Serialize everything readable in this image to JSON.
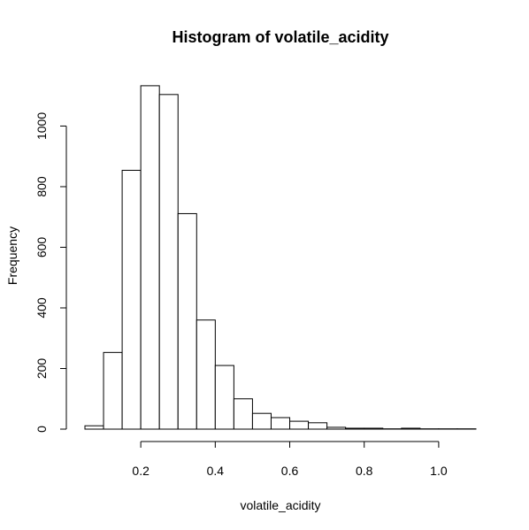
{
  "chart_data": {
    "type": "bar",
    "title": "Histogram of volatile_acidity",
    "xlabel": "volatile_acidity",
    "ylabel": "Frequency",
    "xlim": [
      0.05,
      1.1
    ],
    "ylim": [
      0,
      1140
    ],
    "x_ticks": [
      0.2,
      0.4,
      0.6,
      0.8,
      1.0
    ],
    "x_tick_labels": [
      "0.2",
      "0.4",
      "0.6",
      "0.8",
      "1.0"
    ],
    "y_ticks": [
      0,
      200,
      400,
      600,
      800,
      1000
    ],
    "y_tick_labels": [
      "0",
      "200",
      "400",
      "600",
      "800",
      "1000"
    ],
    "bin_edges": [
      0.05,
      0.1,
      0.15,
      0.2,
      0.25,
      0.3,
      0.35,
      0.4,
      0.45,
      0.5,
      0.55,
      0.6,
      0.65,
      0.7,
      0.75,
      0.8,
      0.85,
      0.9,
      0.95,
      1.0,
      1.05,
      1.1
    ],
    "values": [
      11,
      253,
      854,
      1133,
      1104,
      711,
      360,
      210,
      100,
      52,
      38,
      26,
      21,
      6,
      3,
      3,
      1,
      3,
      1,
      1,
      1
    ],
    "grid": false,
    "colors": {
      "bar_fill": "#ffffff",
      "bar_stroke": "#000000",
      "axis": "#000000"
    }
  }
}
